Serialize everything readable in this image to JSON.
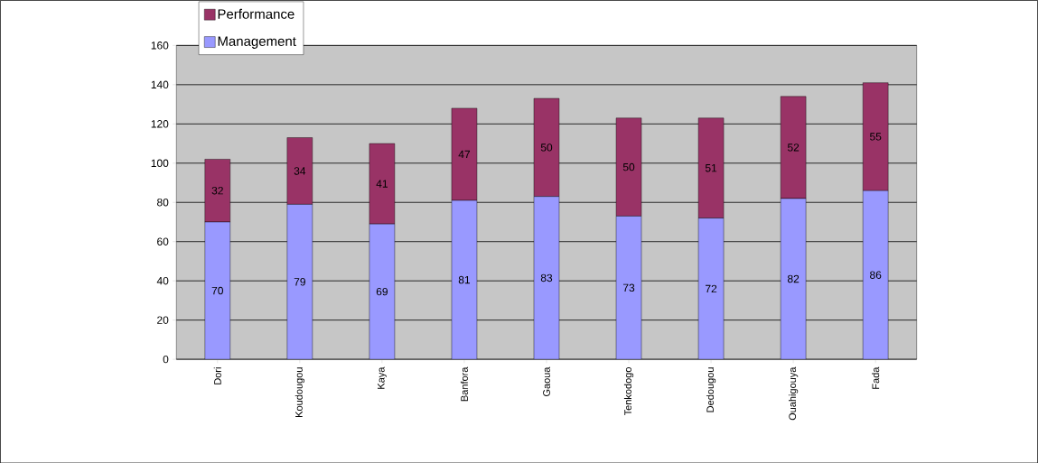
{
  "chart_data": {
    "type": "bar",
    "stacked": true,
    "categories": [
      "Dori",
      "Koudougou",
      "Kaya",
      "Banfora",
      "Gaoua",
      "Tenkodogo",
      "Dedougou",
      "Ouahigouya",
      "Fada"
    ],
    "series": [
      {
        "name": "Management",
        "color": "#9999ff",
        "values": [
          70,
          79,
          69,
          81,
          83,
          73,
          72,
          82,
          86
        ]
      },
      {
        "name": "Performance",
        "color": "#993366",
        "values": [
          32,
          34,
          41,
          47,
          50,
          50,
          51,
          52,
          55
        ]
      }
    ],
    "ylim": [
      0,
      160
    ],
    "yticks": [
      0,
      20,
      40,
      60,
      80,
      100,
      120,
      140,
      160
    ],
    "grid": "y",
    "legend": "top left",
    "data_labels": true
  }
}
